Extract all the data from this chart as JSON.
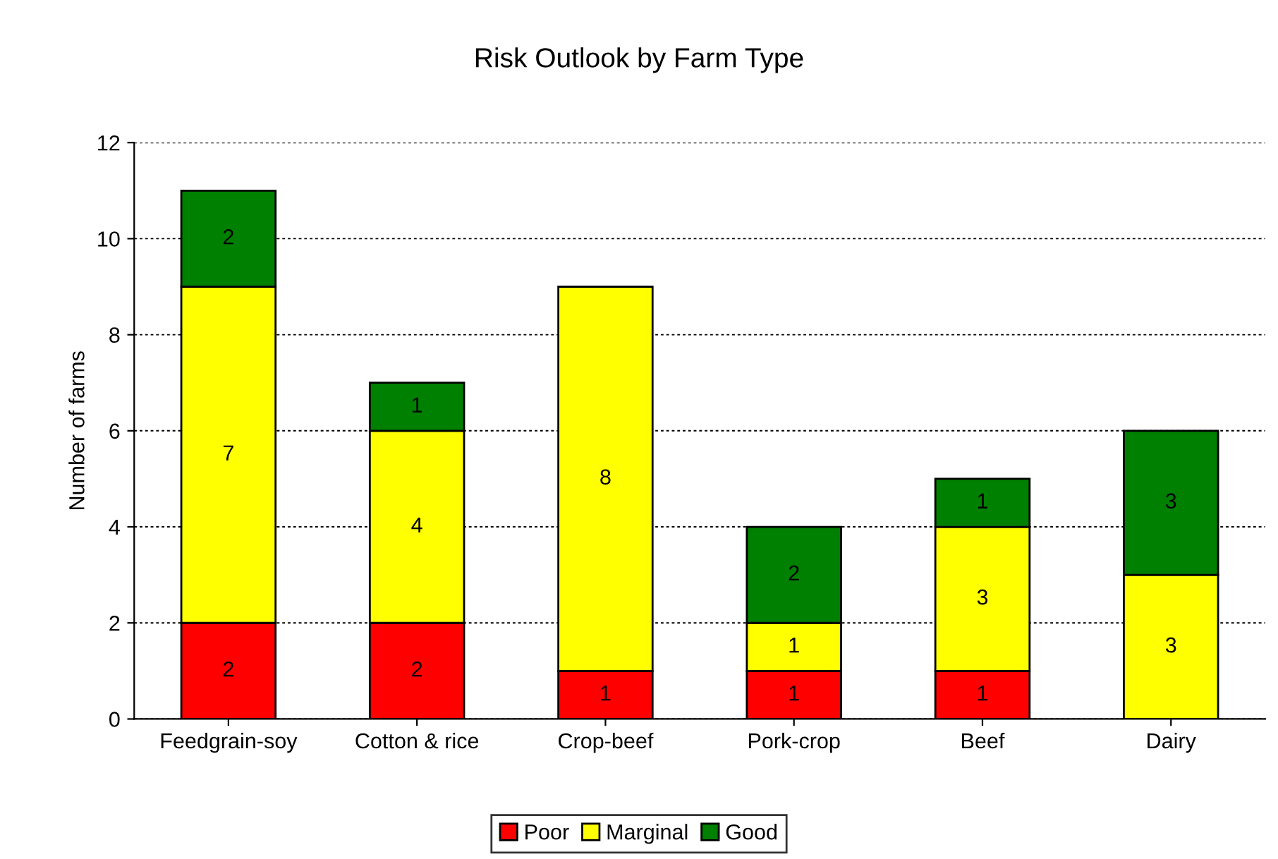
{
  "chart_data": {
    "type": "bar",
    "title": "Risk Outlook by Farm Type",
    "ylabel": "Number of farms",
    "categories": [
      "Feedgrain-soy",
      "Cotton & rice",
      "Crop-beef",
      "Pork-crop",
      "Beef",
      "Dairy"
    ],
    "stacked": true,
    "ylim": [
      0,
      12
    ],
    "yticks": [
      0,
      2,
      4,
      6,
      8,
      10,
      12
    ],
    "grid": "y",
    "legend": "bottom",
    "series": [
      {
        "name": "Poor",
        "color": "#ff0000",
        "values": [
          2,
          2,
          1,
          1,
          1,
          0
        ],
        "value_labels": [
          "2",
          "2",
          "1",
          "1",
          "1",
          null
        ]
      },
      {
        "name": "Marginal",
        "color": "#ffff00",
        "values": [
          7,
          4,
          8,
          1,
          3,
          3
        ],
        "value_labels": [
          "7",
          "4",
          "8",
          "1",
          "3",
          "3"
        ]
      },
      {
        "name": "Good",
        "color": "#008000",
        "values": [
          2,
          1,
          0,
          2,
          1,
          3
        ],
        "value_labels": [
          "2",
          "1",
          null,
          "2",
          "1",
          "3"
        ]
      }
    ]
  }
}
